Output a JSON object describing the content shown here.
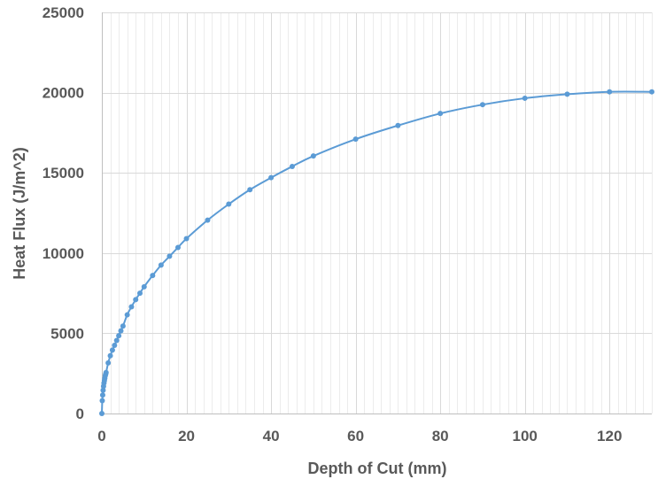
{
  "chart_data": {
    "type": "scatter",
    "title": "",
    "xlabel": "Depth of Cut (mm)",
    "ylabel": "Heat Flux (J/m^2)",
    "xlim": [
      0,
      130
    ],
    "ylim": [
      0,
      25000
    ],
    "x_ticks": [
      0,
      20,
      40,
      60,
      80,
      100,
      120
    ],
    "y_ticks": [
      0,
      5000,
      10000,
      15000,
      20000,
      25000
    ],
    "x_tick_labels": [
      "0",
      "20",
      "40",
      "60",
      "80",
      "100",
      "120"
    ],
    "y_tick_labels": [
      "0",
      "5000",
      "10000",
      "15000",
      "20000",
      "25000"
    ],
    "grid": true,
    "minor_x_grid_step": 2,
    "legend": "none",
    "series": [
      {
        "color": "#5b9bd5",
        "line": "smooth",
        "markers": true,
        "x": [
          0,
          0.1,
          0.2,
          0.3,
          0.4,
          0.5,
          0.6,
          0.7,
          0.8,
          0.9,
          1,
          1.5,
          2,
          2.5,
          3,
          3.5,
          4,
          4.5,
          5,
          6,
          7,
          8,
          9,
          10,
          12,
          14,
          16,
          18,
          20,
          25,
          30,
          35,
          40,
          45,
          50,
          60,
          70,
          80,
          90,
          100,
          110,
          120,
          130
        ],
        "y": [
          0,
          800,
          1150,
          1450,
          1700,
          1900,
          2050,
          2200,
          2350,
          2450,
          2550,
          3150,
          3600,
          3950,
          4250,
          4550,
          4850,
          5150,
          5450,
          6150,
          6650,
          7100,
          7500,
          7900,
          8600,
          9250,
          9800,
          10350,
          10900,
          12050,
          13050,
          13950,
          14700,
          15400,
          16050,
          17100,
          17950,
          18700,
          19250,
          19650,
          19900,
          20050,
          20050
        ]
      }
    ]
  }
}
